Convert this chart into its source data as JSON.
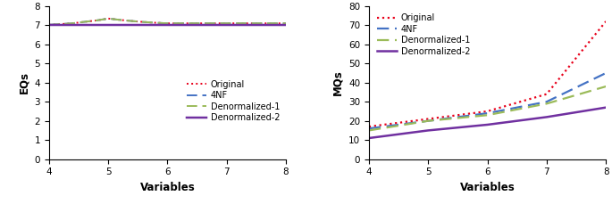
{
  "x_eq": [
    4,
    4.2,
    4.4,
    4.6,
    4.8,
    5.0,
    5.2,
    5.4,
    5.6,
    5.8,
    6.0,
    6.2,
    6.4,
    6.6,
    6.8,
    7.0,
    7.2,
    7.4,
    7.6,
    7.8,
    8.0
  ],
  "eq_original": [
    7.02,
    7.06,
    7.1,
    7.18,
    7.25,
    7.35,
    7.28,
    7.22,
    7.17,
    7.13,
    7.1,
    7.1,
    7.1,
    7.1,
    7.1,
    7.1,
    7.1,
    7.1,
    7.1,
    7.1,
    7.1
  ],
  "eq_4nf": [
    7.02,
    7.06,
    7.1,
    7.18,
    7.25,
    7.35,
    7.28,
    7.22,
    7.17,
    7.13,
    7.1,
    7.1,
    7.1,
    7.1,
    7.1,
    7.1,
    7.1,
    7.1,
    7.1,
    7.1,
    7.1
  ],
  "eq_denorm1": [
    7.02,
    7.06,
    7.1,
    7.18,
    7.25,
    7.35,
    7.28,
    7.22,
    7.17,
    7.13,
    7.1,
    7.1,
    7.1,
    7.1,
    7.1,
    7.1,
    7.1,
    7.1,
    7.1,
    7.1,
    7.1
  ],
  "eq_denorm2": [
    7.0,
    7.0,
    7.0,
    7.0,
    7.0,
    7.0,
    7.0,
    7.0,
    7.0,
    7.0,
    7.0,
    7.0,
    7.0,
    7.0,
    7.0,
    7.0,
    7.0,
    7.0,
    7.0,
    7.0,
    7.0
  ],
  "mq_x": [
    4,
    5,
    6,
    7,
    8
  ],
  "mq_original": [
    17,
    21,
    25,
    34,
    72
  ],
  "mq_4nf": [
    16,
    20,
    24,
    30,
    45
  ],
  "mq_denorm1": [
    15,
    20,
    23,
    29,
    38
  ],
  "mq_denorm2": [
    11,
    15,
    18,
    22,
    27
  ],
  "color_original": "#e8001a",
  "color_4nf": "#4472c4",
  "color_denorm1": "#9bbb59",
  "color_denorm2": "#7030a0",
  "eq_ylim": [
    0,
    8
  ],
  "eq_yticks": [
    0,
    1,
    2,
    3,
    4,
    5,
    6,
    7,
    8
  ],
  "mq_ylim": [
    0,
    80
  ],
  "mq_yticks": [
    0,
    10,
    20,
    30,
    40,
    50,
    60,
    70,
    80
  ],
  "xlabel": "Variables",
  "eq_ylabel": "EQs",
  "mq_ylabel": "MQs",
  "xlim": [
    4,
    8
  ],
  "xticks": [
    4,
    5,
    6,
    7,
    8
  ],
  "legend_labels": [
    "Original",
    "4NF",
    "Denormalized-1",
    "Denormalized-2"
  ]
}
